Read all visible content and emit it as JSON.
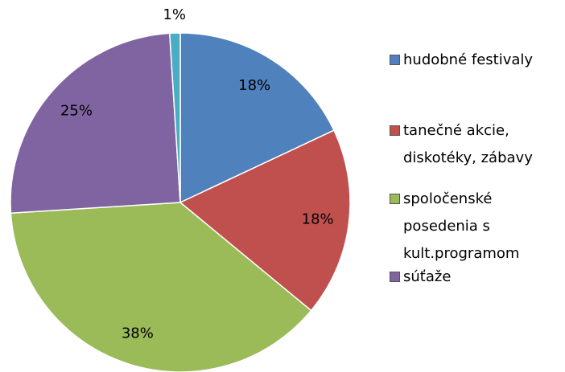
{
  "chart_data": {
    "type": "pie",
    "categories": [
      "hudobné festivaly",
      "tanečné akcie, diskotéky, zábavy",
      "spoločenské posedenia s kult.programom",
      "súťaže",
      null
    ],
    "values": [
      18,
      18,
      38,
      25,
      1
    ],
    "value_labels": [
      "18%",
      "18%",
      "38%",
      "25%",
      "1%"
    ],
    "colors": [
      "#4f81bd",
      "#c0504d",
      "#9bbb59",
      "#8064a2",
      "#4bacc6"
    ],
    "legend": "right"
  }
}
